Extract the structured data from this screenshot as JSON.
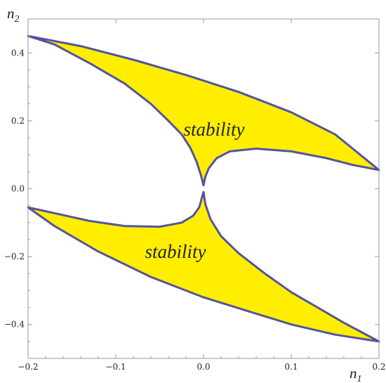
{
  "chart_data": {
    "type": "area",
    "title": "",
    "xlabel": {
      "base": "n",
      "sub": "1"
    },
    "ylabel": {
      "base": "n",
      "sub": "2"
    },
    "xlim": [
      -0.2,
      0.2
    ],
    "ylim": [
      -0.5,
      0.5
    ],
    "x_ticks": [
      {
        "value": -0.2,
        "label": "−0.2"
      },
      {
        "value": -0.1,
        "label": "−0.1"
      },
      {
        "value": 0.0,
        "label": "0.0"
      },
      {
        "value": 0.1,
        "label": "0.1"
      },
      {
        "value": 0.2,
        "label": "0.2"
      }
    ],
    "y_ticks": [
      {
        "value": 0.4,
        "label": "0.4"
      },
      {
        "value": 0.2,
        "label": "0.2"
      },
      {
        "value": 0.0,
        "label": "0.0"
      },
      {
        "value": -0.2,
        "label": "−0.2"
      },
      {
        "value": -0.4,
        "label": "−0.4"
      }
    ],
    "grid": false,
    "fill_color": "#ffee00",
    "edge_color": "#54549c",
    "regions": [
      {
        "label": "stability",
        "label_position": [
          0.012,
          0.175
        ],
        "boundary": [
          [
            -0.2,
            0.45
          ],
          [
            -0.14,
            0.42
          ],
          [
            -0.08,
            0.38
          ],
          [
            -0.02,
            0.335
          ],
          [
            0.04,
            0.285
          ],
          [
            0.1,
            0.225
          ],
          [
            0.15,
            0.16
          ],
          [
            0.2,
            0.055
          ],
          [
            0.17,
            0.07
          ],
          [
            0.14,
            0.09
          ],
          [
            0.1,
            0.11
          ],
          [
            0.06,
            0.118
          ],
          [
            0.03,
            0.11
          ],
          [
            0.015,
            0.09
          ],
          [
            0.006,
            0.06
          ],
          [
            0.002,
            0.035
          ],
          [
            0.0,
            0.01
          ],
          [
            -0.003,
            0.04
          ],
          [
            -0.008,
            0.08
          ],
          [
            -0.015,
            0.12
          ],
          [
            -0.025,
            0.16
          ],
          [
            -0.04,
            0.2
          ],
          [
            -0.06,
            0.25
          ],
          [
            -0.09,
            0.31
          ],
          [
            -0.13,
            0.37
          ],
          [
            -0.17,
            0.425
          ],
          [
            -0.2,
            0.45
          ]
        ]
      },
      {
        "label": "stability",
        "label_position": [
          -0.032,
          -0.185
        ],
        "boundary": [
          [
            -0.2,
            -0.055
          ],
          [
            -0.17,
            -0.072
          ],
          [
            -0.13,
            -0.095
          ],
          [
            -0.09,
            -0.11
          ],
          [
            -0.05,
            -0.112
          ],
          [
            -0.025,
            -0.1
          ],
          [
            -0.012,
            -0.08
          ],
          [
            -0.005,
            -0.055
          ],
          [
            0.0,
            -0.01
          ],
          [
            0.002,
            -0.045
          ],
          [
            0.008,
            -0.09
          ],
          [
            0.02,
            -0.14
          ],
          [
            0.04,
            -0.19
          ],
          [
            0.07,
            -0.25
          ],
          [
            0.1,
            -0.305
          ],
          [
            0.13,
            -0.35
          ],
          [
            0.16,
            -0.395
          ],
          [
            0.2,
            -0.45
          ],
          [
            0.15,
            -0.43
          ],
          [
            0.1,
            -0.4
          ],
          [
            0.05,
            -0.36
          ],
          [
            0.0,
            -0.32
          ],
          [
            -0.06,
            -0.26
          ],
          [
            -0.12,
            -0.185
          ],
          [
            -0.17,
            -0.11
          ],
          [
            -0.2,
            -0.055
          ]
        ]
      }
    ]
  }
}
